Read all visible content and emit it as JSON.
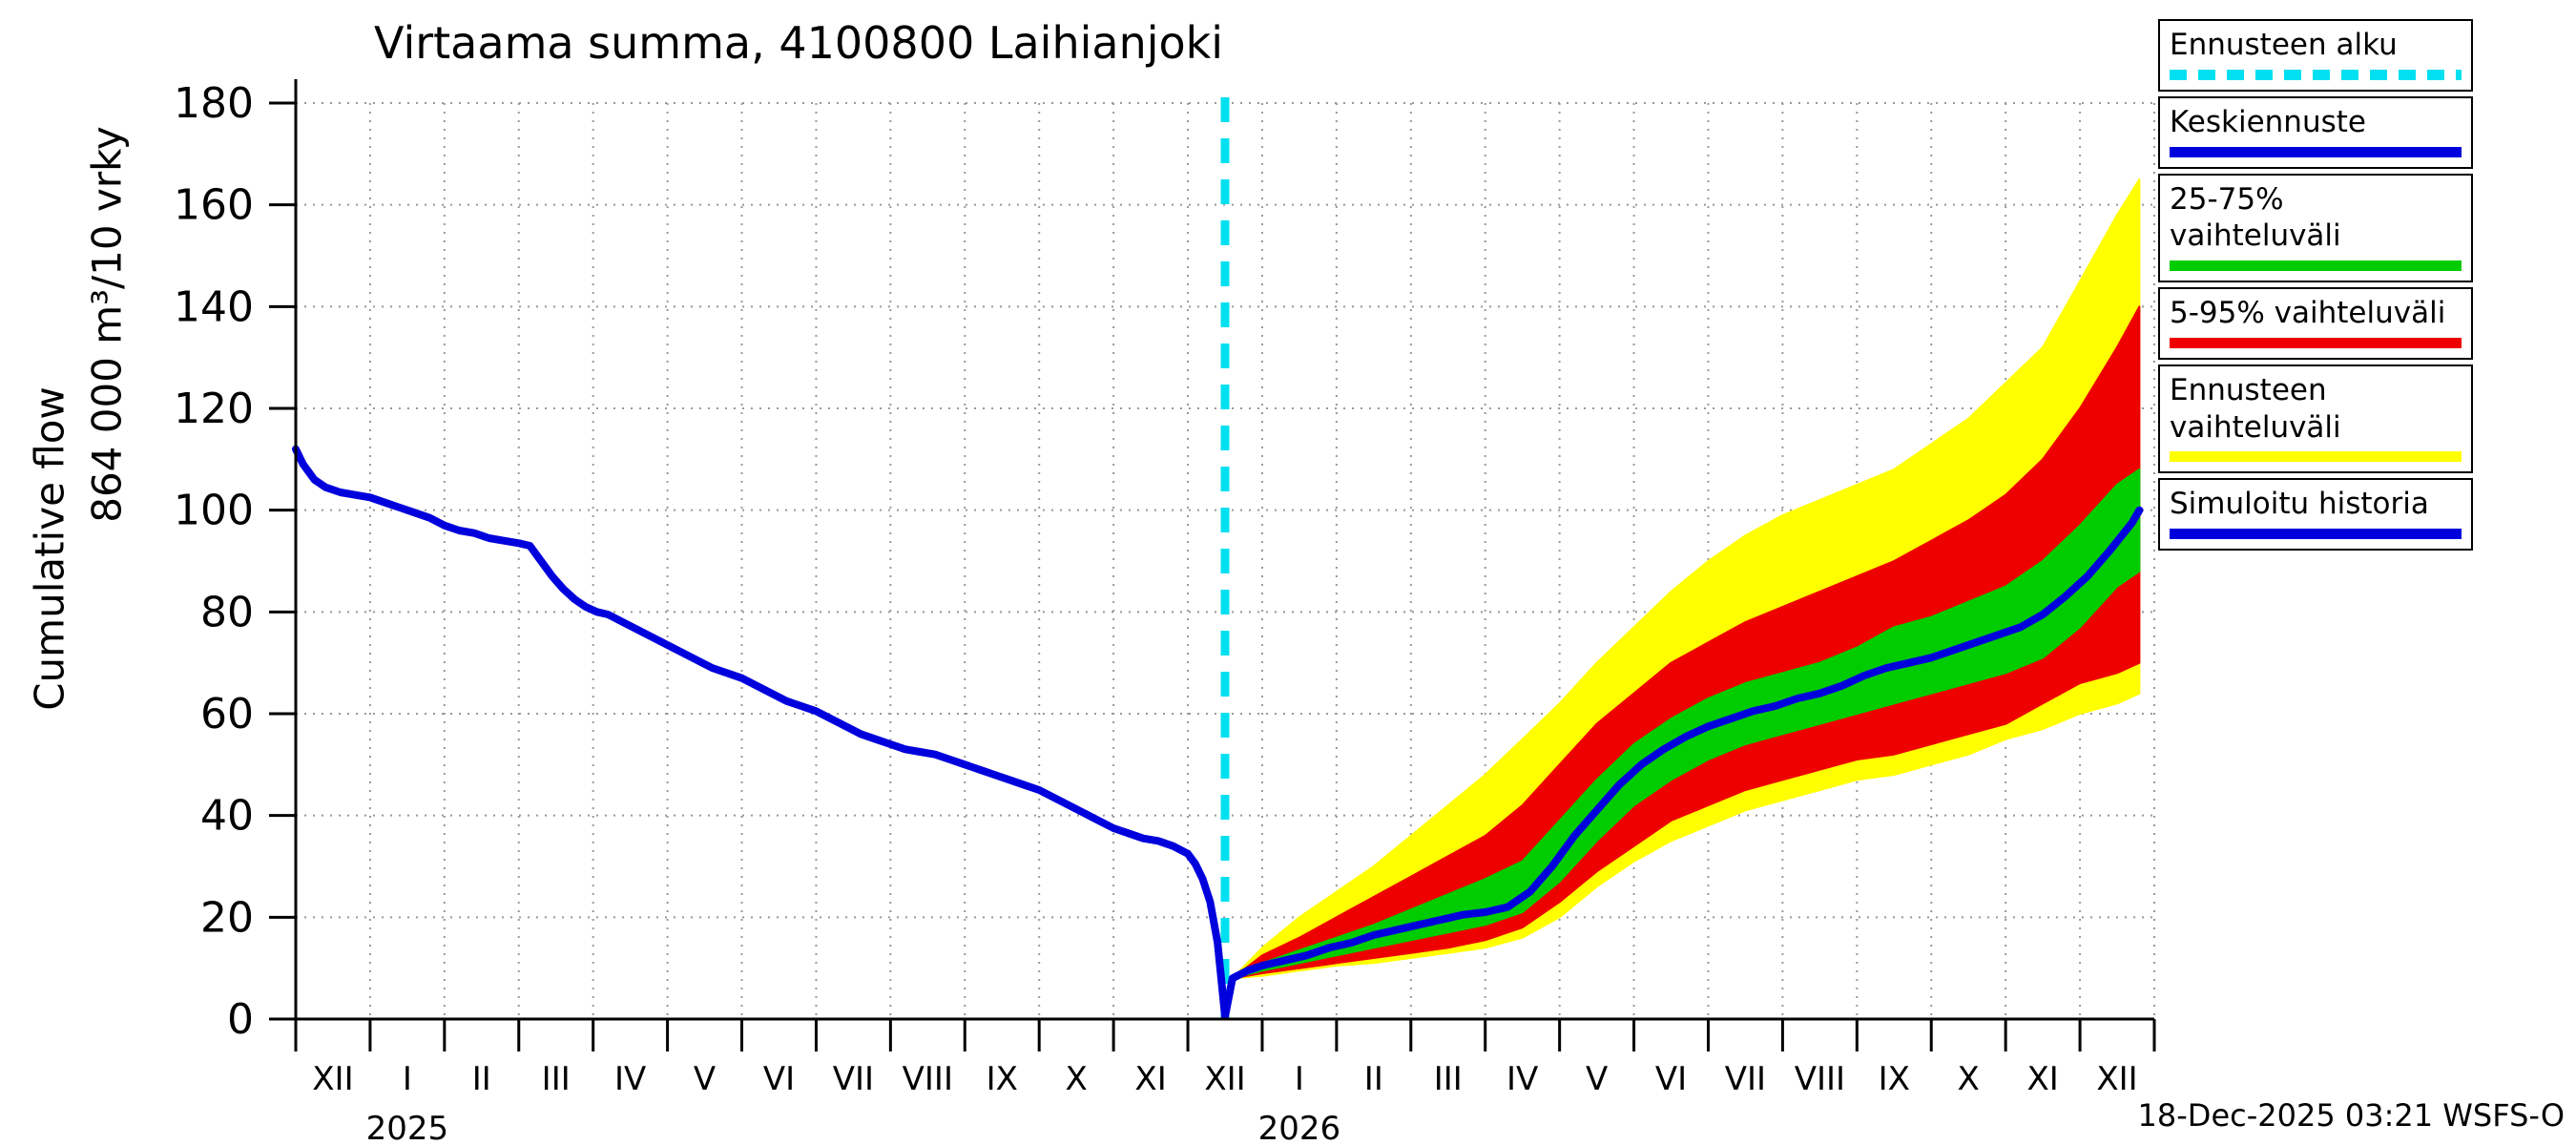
{
  "title": "Virtaama summa, 4100800 Laihianjoki",
  "y_axis": {
    "label_line1": "Cumulative flow",
    "label_line2": "864 000 m³/10 vrky"
  },
  "footer": {
    "timestamp": "18-Dec-2025 03:21 WSFS-O"
  },
  "legend": {
    "items": [
      {
        "label": "Ennusteen alku",
        "color": "#00e0f0",
        "style": "dashed"
      },
      {
        "label": "Keskiennuste",
        "color": "#0000dd",
        "style": "solid"
      },
      {
        "label": "25-75% vaihteluväli",
        "color": "#00cc00",
        "style": "solid"
      },
      {
        "label": "5-95% vaihteluväli",
        "color": "#ee0000",
        "style": "solid"
      },
      {
        "label": "Ennusteen vaihteluväli",
        "color": "#ffff00",
        "style": "solid"
      },
      {
        "label": "Simuloitu historia",
        "color": "#0000dd",
        "style": "solid"
      }
    ]
  },
  "chart_data": {
    "type": "line",
    "title": "Virtaama summa, 4100800 Laihianjoki",
    "ylabel": "Cumulative flow  864 000 m³/10 vrky",
    "ylim": [
      0,
      180
    ],
    "yticks": [
      0,
      20,
      40,
      60,
      80,
      100,
      120,
      140,
      160,
      180
    ],
    "grid": true,
    "legend_position": "top-right",
    "x_months": [
      "XII",
      "I",
      "II",
      "III",
      "IV",
      "V",
      "VI",
      "VII",
      "VIII",
      "IX",
      "X",
      "XI",
      "XII",
      "I",
      "II",
      "III",
      "IV",
      "V",
      "VI",
      "VII",
      "VIII",
      "IX",
      "X",
      "XI",
      "XII"
    ],
    "year_labels": [
      {
        "text": "2025",
        "month_index": 1
      },
      {
        "text": "2026",
        "month_index": 13
      }
    ],
    "forecast_start": {
      "month": 12.5,
      "color": "#00e0f0"
    },
    "series": {
      "history": {
        "name": "Simuloitu historia",
        "color": "#0000dd",
        "points": [
          [
            0,
            112
          ],
          [
            0.1,
            109
          ],
          [
            0.25,
            106
          ],
          [
            0.4,
            104.5
          ],
          [
            0.6,
            103.5
          ],
          [
            0.8,
            103
          ],
          [
            1.0,
            102.5
          ],
          [
            1.2,
            101.5
          ],
          [
            1.4,
            100.5
          ],
          [
            1.6,
            99.5
          ],
          [
            1.8,
            98.5
          ],
          [
            2.0,
            97
          ],
          [
            2.2,
            96
          ],
          [
            2.4,
            95.5
          ],
          [
            2.6,
            94.5
          ],
          [
            2.8,
            94
          ],
          [
            3.0,
            93.5
          ],
          [
            3.15,
            93
          ],
          [
            3.3,
            90
          ],
          [
            3.45,
            87
          ],
          [
            3.6,
            84.5
          ],
          [
            3.75,
            82.5
          ],
          [
            3.9,
            81
          ],
          [
            4.05,
            80
          ],
          [
            4.2,
            79.5
          ],
          [
            4.4,
            78
          ],
          [
            4.6,
            76.5
          ],
          [
            4.8,
            75
          ],
          [
            5.0,
            73.5
          ],
          [
            5.2,
            72
          ],
          [
            5.4,
            70.5
          ],
          [
            5.6,
            69
          ],
          [
            5.8,
            68
          ],
          [
            6.0,
            67
          ],
          [
            6.2,
            65.5
          ],
          [
            6.4,
            64
          ],
          [
            6.6,
            62.5
          ],
          [
            6.8,
            61.5
          ],
          [
            7.0,
            60.5
          ],
          [
            7.2,
            59
          ],
          [
            7.4,
            57.5
          ],
          [
            7.6,
            56
          ],
          [
            7.8,
            55
          ],
          [
            8.0,
            54
          ],
          [
            8.2,
            53
          ],
          [
            8.4,
            52.5
          ],
          [
            8.6,
            52
          ],
          [
            8.8,
            51
          ],
          [
            9.0,
            50
          ],
          [
            9.2,
            49
          ],
          [
            9.4,
            48
          ],
          [
            9.6,
            47
          ],
          [
            9.8,
            46
          ],
          [
            10.0,
            45
          ],
          [
            10.2,
            43.5
          ],
          [
            10.4,
            42
          ],
          [
            10.6,
            40.5
          ],
          [
            10.8,
            39
          ],
          [
            11.0,
            37.5
          ],
          [
            11.2,
            36.5
          ],
          [
            11.4,
            35.5
          ],
          [
            11.6,
            35
          ],
          [
            11.8,
            34
          ],
          [
            12.0,
            32.5
          ],
          [
            12.1,
            30.5
          ],
          [
            12.2,
            27.5
          ],
          [
            12.3,
            23
          ],
          [
            12.4,
            15
          ],
          [
            12.5,
            0.5
          ]
        ]
      },
      "median": {
        "name": "Keskiennuste",
        "color": "#0000dd",
        "points": [
          [
            12.5,
            0.5
          ],
          [
            12.6,
            8
          ],
          [
            12.8,
            9.5
          ],
          [
            13.0,
            10.5
          ],
          [
            13.3,
            11.5
          ],
          [
            13.6,
            12.5
          ],
          [
            13.9,
            14
          ],
          [
            14.2,
            15
          ],
          [
            14.5,
            16.5
          ],
          [
            14.8,
            17.5
          ],
          [
            15.1,
            18.5
          ],
          [
            15.4,
            19.5
          ],
          [
            15.7,
            20.5
          ],
          [
            16.0,
            21
          ],
          [
            16.3,
            22
          ],
          [
            16.6,
            25
          ],
          [
            16.9,
            30
          ],
          [
            17.2,
            36
          ],
          [
            17.5,
            41
          ],
          [
            17.8,
            46
          ],
          [
            18.1,
            50
          ],
          [
            18.4,
            53
          ],
          [
            18.7,
            55.5
          ],
          [
            19.0,
            57.5
          ],
          [
            19.3,
            59
          ],
          [
            19.6,
            60.5
          ],
          [
            19.9,
            61.5
          ],
          [
            20.2,
            63
          ],
          [
            20.5,
            64
          ],
          [
            20.8,
            65.5
          ],
          [
            21.1,
            67.5
          ],
          [
            21.4,
            69
          ],
          [
            21.7,
            70
          ],
          [
            22.0,
            71
          ],
          [
            22.3,
            72.5
          ],
          [
            22.6,
            74
          ],
          [
            22.9,
            75.5
          ],
          [
            23.2,
            77
          ],
          [
            23.5,
            79.5
          ],
          [
            23.8,
            83
          ],
          [
            24.1,
            87
          ],
          [
            24.4,
            92
          ],
          [
            24.7,
            97.5
          ],
          [
            24.8,
            100
          ]
        ]
      },
      "band_25_75": {
        "name": "25-75% vaihteluväli",
        "color": "#00cc00",
        "x": [
          12.6,
          13,
          13.5,
          14,
          14.5,
          15,
          15.5,
          16,
          16.5,
          17,
          17.5,
          18,
          18.5,
          19,
          19.5,
          20,
          20.5,
          21,
          21.5,
          22,
          22.5,
          23,
          23.5,
          24,
          24.5,
          24.8
        ],
        "lower": [
          8,
          9.5,
          11,
          12.5,
          14,
          15.5,
          17,
          18.5,
          21,
          27,
          35,
          42,
          47,
          51,
          54,
          56,
          58,
          60,
          62,
          64,
          66,
          68,
          71,
          77,
          85,
          88
        ],
        "upper": [
          8,
          11,
          13.5,
          16,
          18.5,
          21.5,
          24.5,
          27.5,
          31,
          39,
          47,
          54,
          59,
          63,
          66,
          68,
          70,
          73,
          77,
          79,
          82,
          85,
          90,
          97,
          105,
          108
        ]
      },
      "band_5_95": {
        "name": "5-95% vaihteluväli",
        "color": "#ee0000",
        "x": [
          12.6,
          13,
          13.5,
          14,
          14.5,
          15,
          15.5,
          16,
          16.5,
          17,
          17.5,
          18,
          18.5,
          19,
          19.5,
          20,
          20.5,
          21,
          21.5,
          22,
          22.5,
          23,
          23.5,
          24,
          24.5,
          24.8
        ],
        "lower": [
          8,
          9,
          10,
          11,
          12,
          13,
          14,
          15.5,
          18,
          23,
          29,
          34,
          39,
          42,
          45,
          47,
          49,
          51,
          52,
          54,
          56,
          58,
          62,
          66,
          68,
          70
        ],
        "upper": [
          8,
          12.5,
          16,
          20,
          24,
          28,
          32,
          36,
          42,
          50,
          58,
          64,
          70,
          74,
          78,
          81,
          84,
          87,
          90,
          94,
          98,
          103,
          110,
          120,
          132,
          140
        ]
      },
      "band_full": {
        "name": "Ennusteen vaihteluväli",
        "color": "#ffff00",
        "x": [
          12.6,
          13,
          13.5,
          14,
          14.5,
          15,
          15.5,
          16,
          16.5,
          17,
          17.5,
          18,
          18.5,
          19,
          19.5,
          20,
          20.5,
          21,
          21.5,
          22,
          22.5,
          23,
          23.5,
          24,
          24.5,
          24.8
        ],
        "lower": [
          8,
          8.5,
          9.5,
          10.5,
          11,
          12,
          13,
          14,
          16,
          20,
          26,
          31,
          35,
          38,
          41,
          43,
          45,
          47,
          48,
          50,
          52,
          55,
          57,
          60,
          62,
          64
        ],
        "upper": [
          8,
          14,
          20,
          25,
          30,
          36,
          42,
          48,
          55,
          62,
          70,
          77,
          84,
          90,
          95,
          99,
          102,
          105,
          108,
          113,
          118,
          125,
          132,
          145,
          158,
          165
        ]
      }
    }
  }
}
